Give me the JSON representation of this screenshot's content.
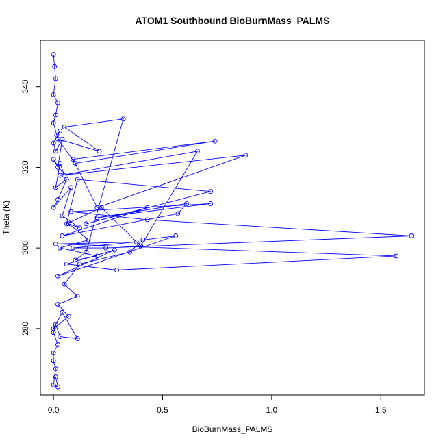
{
  "chart_data": {
    "type": "line",
    "title": "ATOM1 Southbound BioBurnMass_PALMS",
    "xlabel": "BioBurnMass_PALMS",
    "ylabel": "Theta (K)",
    "xlim": [
      -0.06,
      1.7
    ],
    "ylim": [
      263.5,
      351.5
    ],
    "xticks": [
      0,
      0.5,
      1,
      1.5
    ],
    "xtick_labels": [
      "0.0",
      "0.5",
      "1.0",
      "1.5"
    ],
    "yticks": [
      280,
      300,
      320,
      340
    ],
    "ytick_labels": [
      "280",
      "300",
      "320",
      "340"
    ],
    "grid": false,
    "legend": "none",
    "marker": "open-circle",
    "color": "#0000ff",
    "series": [
      {
        "x": [
          0.0,
          0.005,
          0.01,
          0.0,
          0.02,
          0.01,
          0.0,
          0.015,
          0.03,
          0.0,
          0.01,
          0.04,
          0.02,
          0.0,
          0.05,
          0.03,
          0.01,
          0.06,
          0.02,
          0.0,
          0.08,
          0.04,
          0.12,
          0.07,
          0.16,
          0.03,
          0.2,
          0.1,
          0.15,
          0.32,
          0.05,
          0.21,
          0.02,
          0.1,
          0.74,
          0.09,
          0.2,
          0.88,
          0.03,
          0.66,
          0.4,
          0.22,
          0.06,
          0.11,
          0.72,
          0.15,
          0.43,
          0.04,
          0.57,
          0.61,
          0.2,
          0.72,
          0.08,
          0.43,
          1.64,
          0.24,
          0.09,
          0.38,
          0.01,
          1.57,
          0.29,
          0.06,
          0.28,
          0.02,
          0.56,
          0.41,
          0.35,
          0.12,
          0.05,
          0.11,
          0.02,
          0.07,
          0.0,
          0.04,
          0.11,
          0.03,
          0.01,
          0.0,
          0.02,
          0.0,
          0.0,
          0.01,
          0.0,
          0.02,
          0.01
        ],
        "y": [
          348,
          345,
          342,
          338,
          336,
          333,
          331,
          328,
          329,
          326,
          324,
          327,
          320,
          322,
          318,
          321,
          315,
          317,
          312,
          310,
          315,
          308,
          305,
          306,
          302,
          300,
          298,
          297,
          299,
          332,
          330,
          324,
          327,
          321,
          326.5,
          322,
          310,
          323,
          318,
          324,
          300.5,
          310,
          306,
          317,
          314,
          306,
          310,
          303,
          308.5,
          311,
          307.5,
          311,
          309,
          307,
          303,
          300,
          300,
          301.5,
          301,
          298,
          294.5,
          296,
          299.5,
          293,
          303,
          302,
          299,
          296,
          291,
          288,
          286,
          283,
          280,
          284,
          277.5,
          278,
          281,
          279,
          276,
          274,
          272,
          270,
          266,
          265.5,
          268
        ]
      }
    ]
  }
}
